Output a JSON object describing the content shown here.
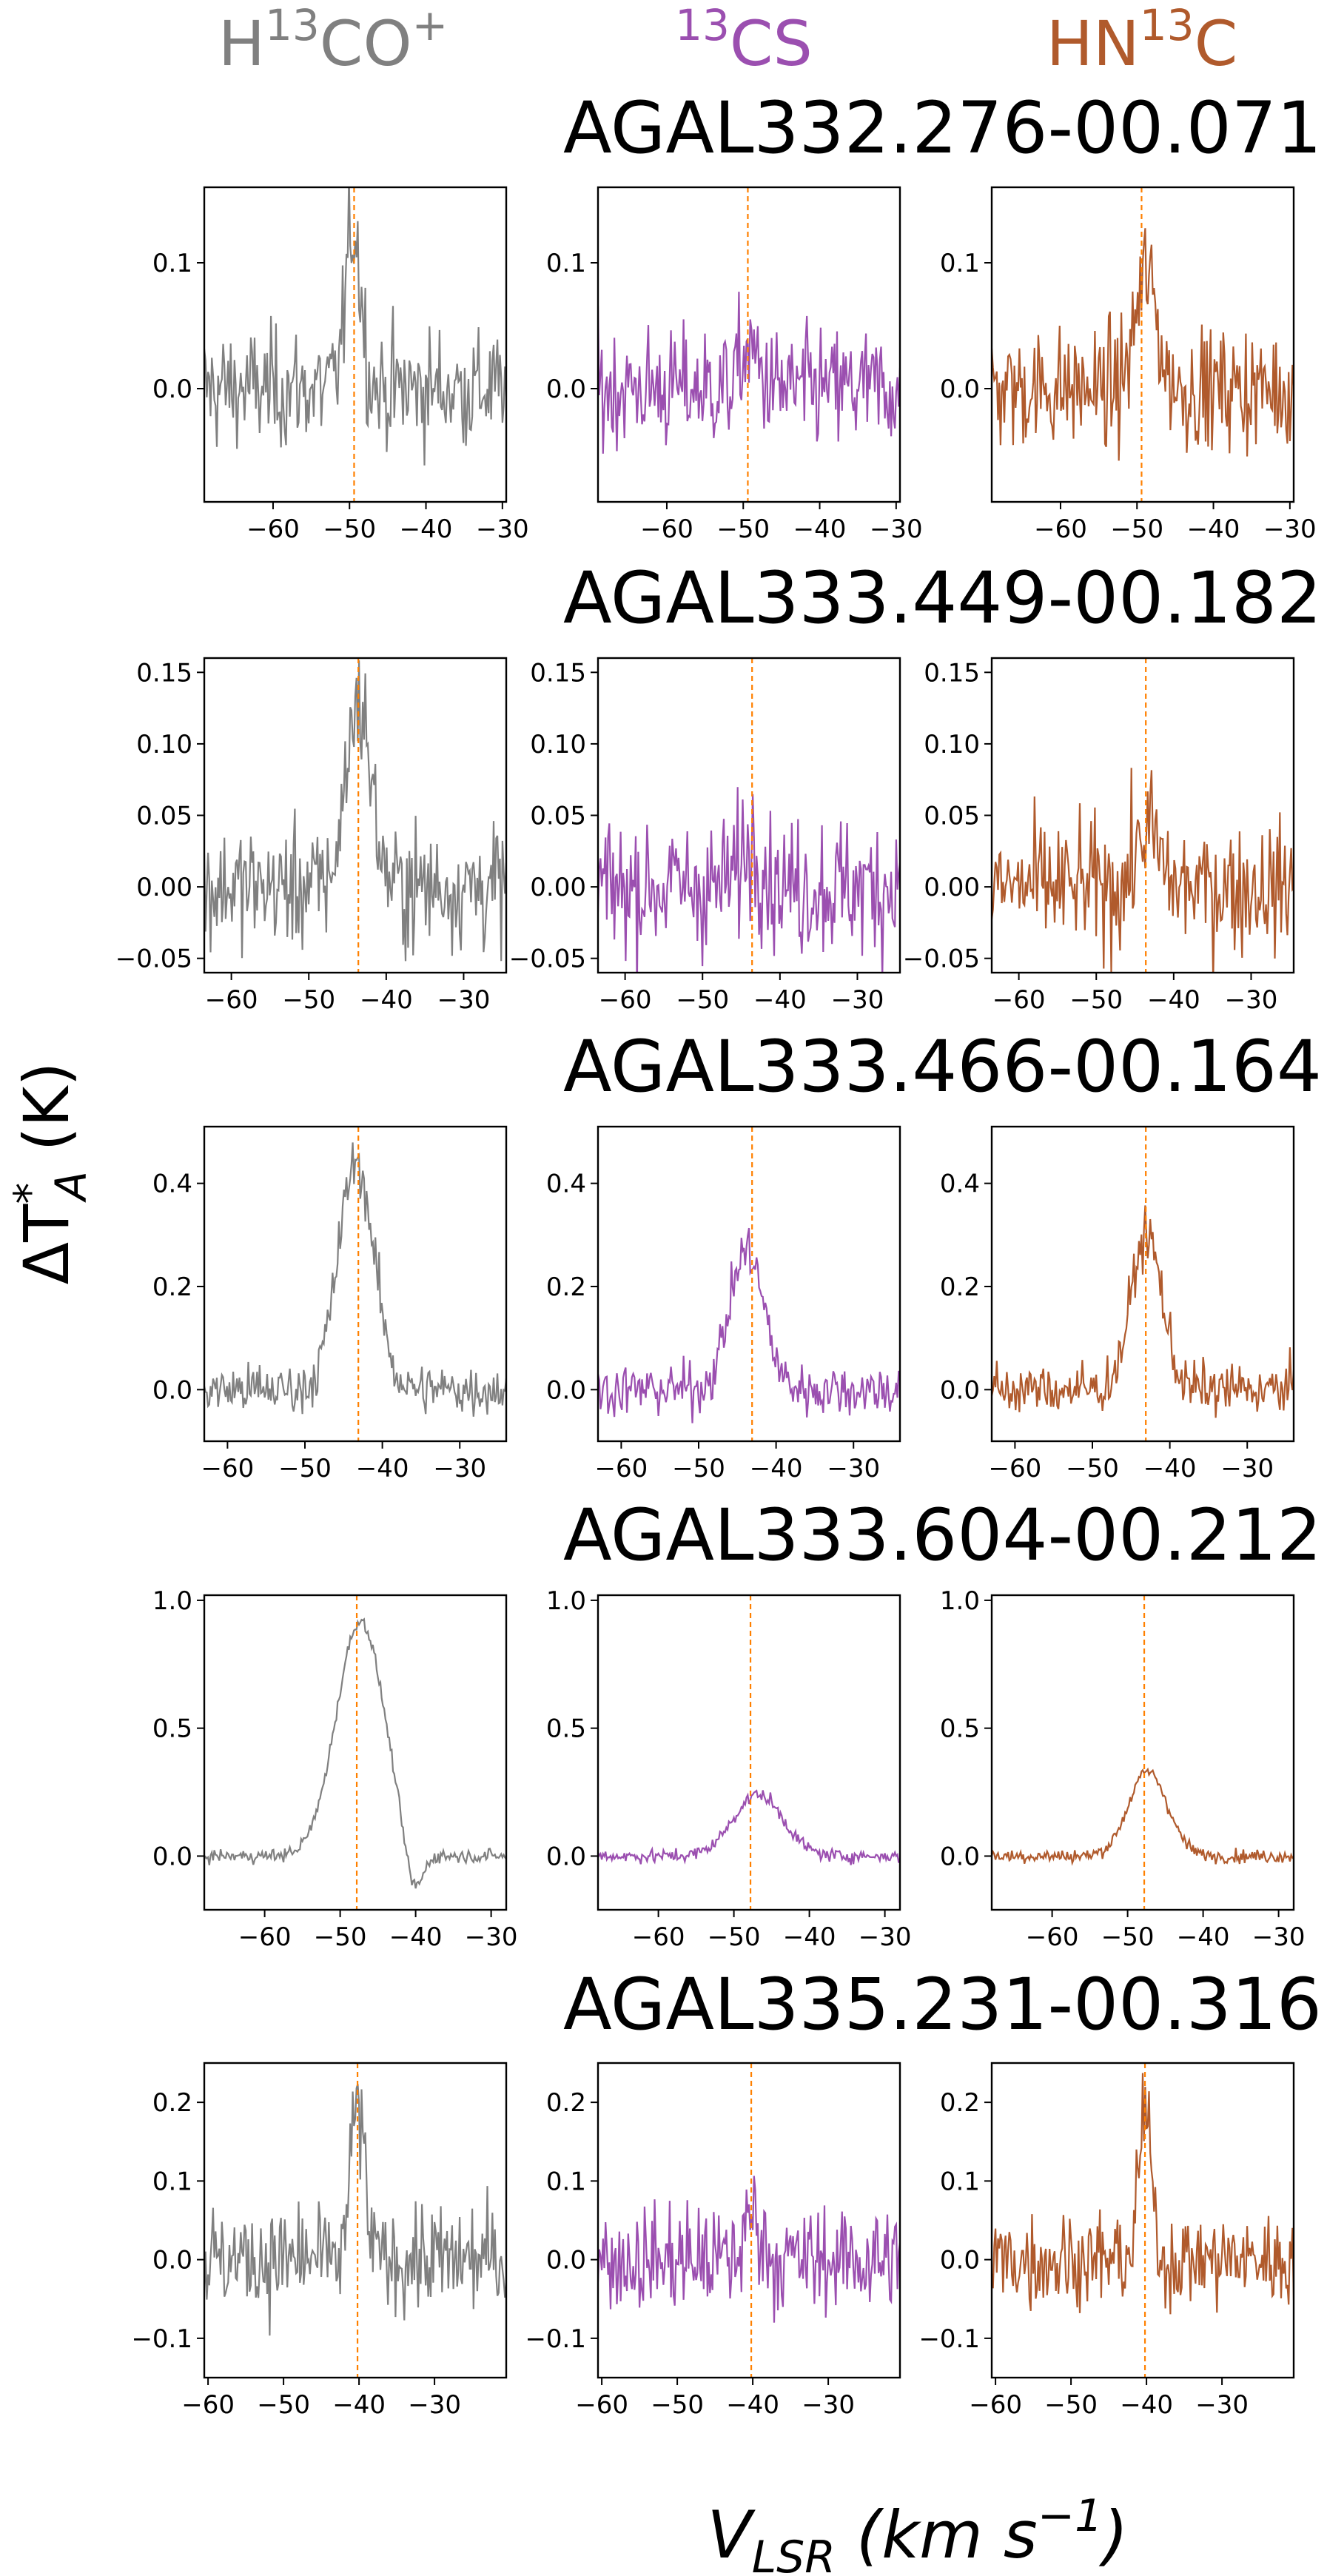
{
  "chart_data": {
    "type": "line",
    "xlabel": "V_LSR (km s^-1)",
    "ylabel": "ΔT*_A (K)",
    "colors": {
      "H13CO+": "#808080",
      "13CS": "#9b4fb0",
      "HN13C": "#b05a2c",
      "vline": "#ff8000"
    },
    "columns": [
      {
        "key": "H13CO+",
        "sup": "13",
        "pre": "H",
        "post": "CO",
        "post_sup": "+"
      },
      {
        "key": "13CS",
        "sup": "13",
        "pre": "",
        "post": "CS",
        "post_sup": ""
      },
      {
        "key": "HN13C",
        "sup": "13",
        "pre": "HN",
        "post": "C",
        "post_sup": ""
      }
    ],
    "panels": [
      {
        "title": "AGAL332.276-00.071",
        "xlim": [
          -69,
          -29.5
        ],
        "xticks": [
          -60,
          -50,
          -40,
          -30
        ],
        "ylim": [
          -0.09,
          0.16
        ],
        "yticks": [
          0.0,
          0.1
        ],
        "ytick_labels": [
          "0.0",
          "0.1"
        ],
        "vlsr": -49.4,
        "series": [
          {
            "name": "H13CO+",
            "center": -49.5,
            "width": 1.0,
            "peak": 0.13,
            "noise": 0.028,
            "dip": null
          },
          {
            "name": "13CS",
            "center": -49.2,
            "width": 1.2,
            "peak": 0.03,
            "noise": 0.028,
            "dip": null
          },
          {
            "name": "HN13C",
            "center": -48.8,
            "width": 1.4,
            "peak": 0.09,
            "noise": 0.028,
            "dip": null
          }
        ]
      },
      {
        "title": "AGAL333.449-00.182",
        "xlim": [
          -63.5,
          -24.5
        ],
        "xticks": [
          -60,
          -50,
          -40,
          -30
        ],
        "ylim": [
          -0.06,
          0.16
        ],
        "yticks": [
          -0.05,
          0.0,
          0.05,
          0.1,
          0.15
        ],
        "ytick_labels": [
          "−0.05",
          "0.00",
          "0.05",
          "0.10",
          "0.15"
        ],
        "vlsr": -43.6,
        "series": [
          {
            "name": "H13CO+",
            "center": -43.6,
            "width": 1.6,
            "peak": 0.13,
            "noise": 0.025,
            "dip": null
          },
          {
            "name": "13CS",
            "center": -43.6,
            "width": 1.5,
            "peak": 0.03,
            "noise": 0.028,
            "dip": null
          },
          {
            "name": "HN13C",
            "center": -43.4,
            "width": 1.4,
            "peak": 0.04,
            "noise": 0.026,
            "dip": null
          }
        ]
      },
      {
        "title": "AGAL333.466-00.164",
        "xlim": [
          -63,
          -24
        ],
        "xticks": [
          -60,
          -50,
          -40,
          -30
        ],
        "ylim": [
          -0.1,
          0.51
        ],
        "yticks": [
          0.0,
          0.2,
          0.4
        ],
        "ytick_labels": [
          "0.0",
          "0.2",
          "0.4"
        ],
        "vlsr": -43.1,
        "series": [
          {
            "name": "H13CO+",
            "center": -43.4,
            "width": 2.3,
            "peak": 0.44,
            "noise": 0.03,
            "dip": null
          },
          {
            "name": "13CS",
            "center": -43.8,
            "width": 2.2,
            "peak": 0.27,
            "noise": 0.03,
            "dip": null
          },
          {
            "name": "HN13C",
            "center": -43.0,
            "width": 2.0,
            "peak": 0.3,
            "noise": 0.03,
            "dip": null
          }
        ]
      },
      {
        "title": "AGAL333.604-00.212",
        "xlim": [
          -68,
          -28
        ],
        "xticks": [
          -60,
          -50,
          -40,
          -30
        ],
        "ylim": [
          -0.21,
          1.02
        ],
        "yticks": [
          0.0,
          0.5,
          1.0
        ],
        "ytick_labels": [
          "0.0",
          "0.5",
          "1.0"
        ],
        "vlsr": -47.8,
        "series": [
          {
            "name": "H13CO+",
            "center": -47.3,
            "width": 3.2,
            "peak": 0.92,
            "noise": 0.015,
            "dip": {
              "center": -40.3,
              "width": 1.2,
              "depth": -0.19
            }
          },
          {
            "name": "13CS",
            "center": -46.8,
            "width": 3.3,
            "peak": 0.24,
            "noise": 0.015,
            "dip": null
          },
          {
            "name": "HN13C",
            "center": -47.3,
            "width": 2.6,
            "peak": 0.33,
            "noise": 0.015,
            "dip": null
          }
        ]
      },
      {
        "title": "AGAL335.231-00.316",
        "xlim": [
          -60.5,
          -20.5
        ],
        "xticks": [
          -60,
          -50,
          -40,
          -30
        ],
        "ylim": [
          -0.15,
          0.25
        ],
        "yticks": [
          -0.1,
          0.0,
          0.1,
          0.2
        ],
        "ytick_labels": [
          "−0.1",
          "0.0",
          "0.1",
          "0.2"
        ],
        "vlsr": -40.2,
        "series": [
          {
            "name": "H13CO+",
            "center": -40.2,
            "width": 0.9,
            "peak": 0.2,
            "noise": 0.04,
            "dip": null
          },
          {
            "name": "13CS",
            "center": -40.0,
            "width": 1.0,
            "peak": 0.06,
            "noise": 0.04,
            "dip": null
          },
          {
            "name": "HN13C",
            "center": -40.2,
            "width": 0.8,
            "peak": 0.19,
            "noise": 0.035,
            "dip": null
          }
        ]
      }
    ],
    "xtick_labels": [
      "−60",
      "−50",
      "−40",
      "−30"
    ]
  }
}
